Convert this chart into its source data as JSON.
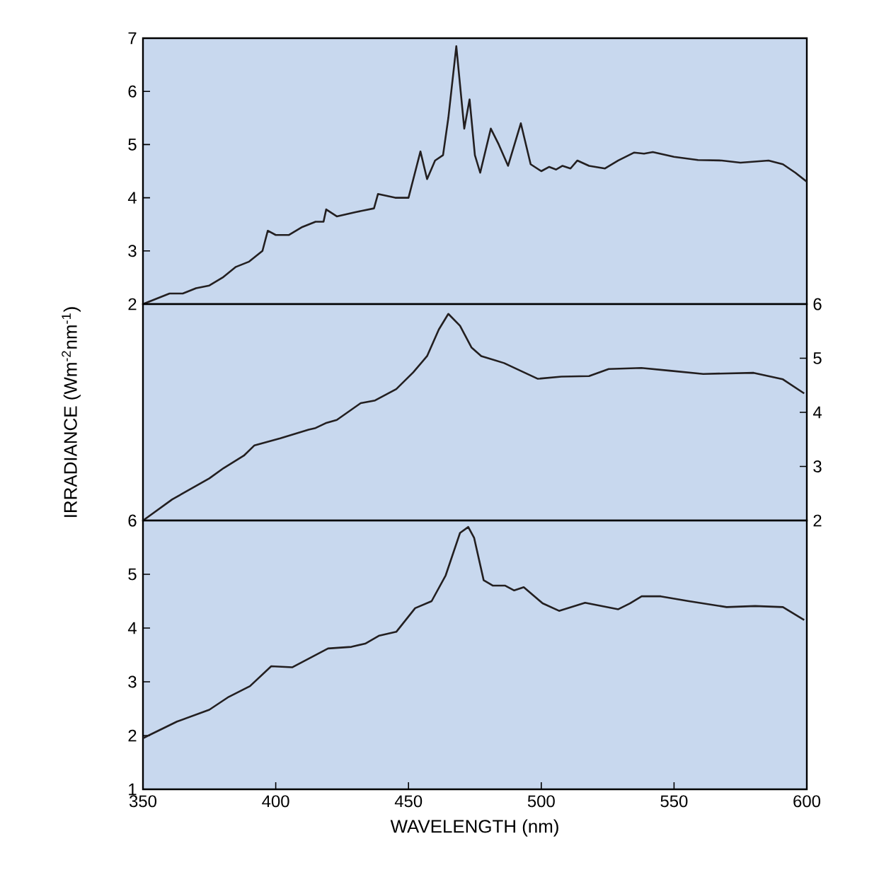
{
  "chart_data": [
    {
      "type": "line",
      "xlim": [
        350,
        600
      ],
      "ylim": [
        2,
        7
      ],
      "yticks": [
        2,
        3,
        4,
        5,
        6,
        7
      ],
      "tick_labels": "y",
      "grid": false,
      "marker": "none",
      "line_style": "solid",
      "series": [
        {
          "color": "#231f20",
          "x": [
            350,
            360,
            365,
            370,
            375,
            380,
            385,
            390,
            395,
            397,
            400,
            405,
            410,
            415,
            418,
            419,
            423,
            430,
            437,
            438.5,
            445,
            448,
            450,
            454.5,
            457,
            460,
            463,
            465,
            468,
            471,
            473,
            475,
            477,
            481,
            484,
            487.5,
            492.3,
            496,
            500,
            503,
            505.6,
            508,
            511,
            513.6,
            518,
            524,
            529,
            535,
            538.7,
            542,
            550,
            559,
            568,
            575,
            585.6,
            591,
            595.7,
            600
          ],
          "values": [
            2.0,
            2.2,
            2.2,
            2.3,
            2.35,
            2.5,
            2.7,
            2.8,
            3.0,
            3.38,
            3.3,
            3.3,
            3.45,
            3.55,
            3.55,
            3.78,
            3.65,
            3.73,
            3.8,
            4.07,
            4.0,
            4.0,
            4.0,
            4.87,
            4.35,
            4.7,
            4.8,
            5.5,
            6.85,
            5.3,
            5.85,
            4.8,
            4.47,
            5.3,
            5.0,
            4.6,
            5.4,
            4.63,
            4.5,
            4.58,
            4.53,
            4.6,
            4.55,
            4.7,
            4.6,
            4.55,
            4.7,
            4.85,
            4.83,
            4.86,
            4.77,
            4.71,
            4.7,
            4.66,
            4.7,
            4.63,
            4.47,
            4.3
          ]
        }
      ]
    },
    {
      "type": "line",
      "xlim": [
        350,
        600
      ],
      "y2lim": [
        2,
        6
      ],
      "y2ticks": [
        2,
        3,
        4,
        5,
        6
      ],
      "tick_labels": "y",
      "ylabel": "IRRADIANCE (Wm$^{-2}$nm$^{-1}$)",
      "grid": false,
      "marker": "none",
      "line_style": "solid",
      "series": [
        {
          "color": "#231f20",
          "axis": "y2",
          "x": [
            350,
            361,
            375,
            380.4,
            388,
            392,
            401.7,
            412.4,
            415,
            418.8,
            423,
            432,
            437.4,
            445.4,
            451.8,
            457,
            461.4,
            465,
            469.4,
            473.7,
            477.4,
            486,
            498.7,
            507.6,
            518,
            525.4,
            537.7,
            548.4,
            561,
            580,
            591,
            599
          ],
          "values": [
            2.0,
            2.39,
            2.78,
            2.97,
            3.2,
            3.39,
            3.52,
            3.68,
            3.71,
            3.8,
            3.86,
            4.17,
            4.22,
            4.43,
            4.74,
            5.04,
            5.53,
            5.82,
            5.6,
            5.2,
            5.04,
            4.91,
            4.62,
            4.66,
            4.67,
            4.8,
            4.82,
            4.77,
            4.71,
            4.73,
            4.61,
            4.35
          ]
        }
      ]
    },
    {
      "type": "line",
      "xlim": [
        350,
        600
      ],
      "ylim": [
        1,
        6
      ],
      "xticks": [
        350,
        400,
        450,
        500,
        550,
        600
      ],
      "yticks": [
        1,
        2,
        3,
        4,
        5,
        6
      ],
      "xlabel": "WAVELENGTH (nm)",
      "grid": false,
      "marker": "none",
      "line_style": "solid",
      "series": [
        {
          "color": "#231f20",
          "x": [
            350,
            362.8,
            375,
            382.3,
            390.3,
            398.3,
            406.3,
            419.7,
            428.5,
            433.7,
            439,
            445.4,
            452.5,
            458.7,
            464,
            469.4,
            472.5,
            474.7,
            478.3,
            481.7,
            486.3,
            489.8,
            493.4,
            500.5,
            506.7,
            516.5,
            529,
            533.4,
            537.8,
            545,
            555.6,
            569.8,
            580.5,
            591,
            599
          ],
          "values": [
            1.95,
            2.26,
            2.48,
            2.72,
            2.92,
            3.29,
            3.27,
            3.62,
            3.65,
            3.71,
            3.86,
            3.93,
            4.37,
            4.5,
            4.98,
            5.77,
            5.88,
            5.68,
            4.89,
            4.79,
            4.79,
            4.7,
            4.76,
            4.46,
            4.32,
            4.47,
            4.35,
            4.46,
            4.59,
            4.59,
            4.5,
            4.39,
            4.41,
            4.39,
            4.15
          ]
        }
      ]
    }
  ]
}
